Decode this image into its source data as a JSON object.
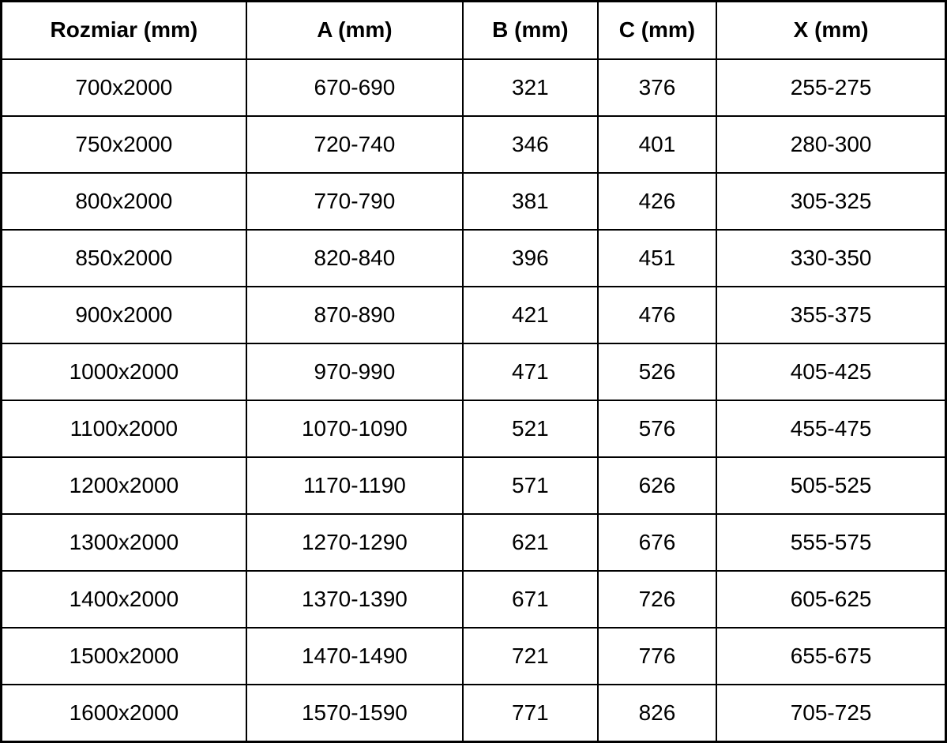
{
  "table": {
    "columns": [
      "Rozmiar (mm)",
      "A (mm)",
      "B (mm)",
      "C (mm)",
      "X (mm)"
    ],
    "rows": [
      [
        "700x2000",
        "670-690",
        "321",
        "376",
        "255-275"
      ],
      [
        "750x2000",
        "720-740",
        "346",
        "401",
        "280-300"
      ],
      [
        "800x2000",
        "770-790",
        "381",
        "426",
        "305-325"
      ],
      [
        "850x2000",
        "820-840",
        "396",
        "451",
        "330-350"
      ],
      [
        "900x2000",
        "870-890",
        "421",
        "476",
        "355-375"
      ],
      [
        "1000x2000",
        "970-990",
        "471",
        "526",
        "405-425"
      ],
      [
        "1100x2000",
        "1070-1090",
        "521",
        "576",
        "455-475"
      ],
      [
        "1200x2000",
        "1170-1190",
        "571",
        "626",
        "505-525"
      ],
      [
        "1300x2000",
        "1270-1290",
        "621",
        "676",
        "555-575"
      ],
      [
        "1400x2000",
        "1370-1390",
        "671",
        "726",
        "605-625"
      ],
      [
        "1500x2000",
        "1470-1490",
        "721",
        "776",
        "655-675"
      ],
      [
        "1600x2000",
        "1570-1590",
        "771",
        "826",
        "705-725"
      ]
    ],
    "colors": {
      "border": "#000000",
      "text": "#000000",
      "background": "#ffffff"
    }
  }
}
